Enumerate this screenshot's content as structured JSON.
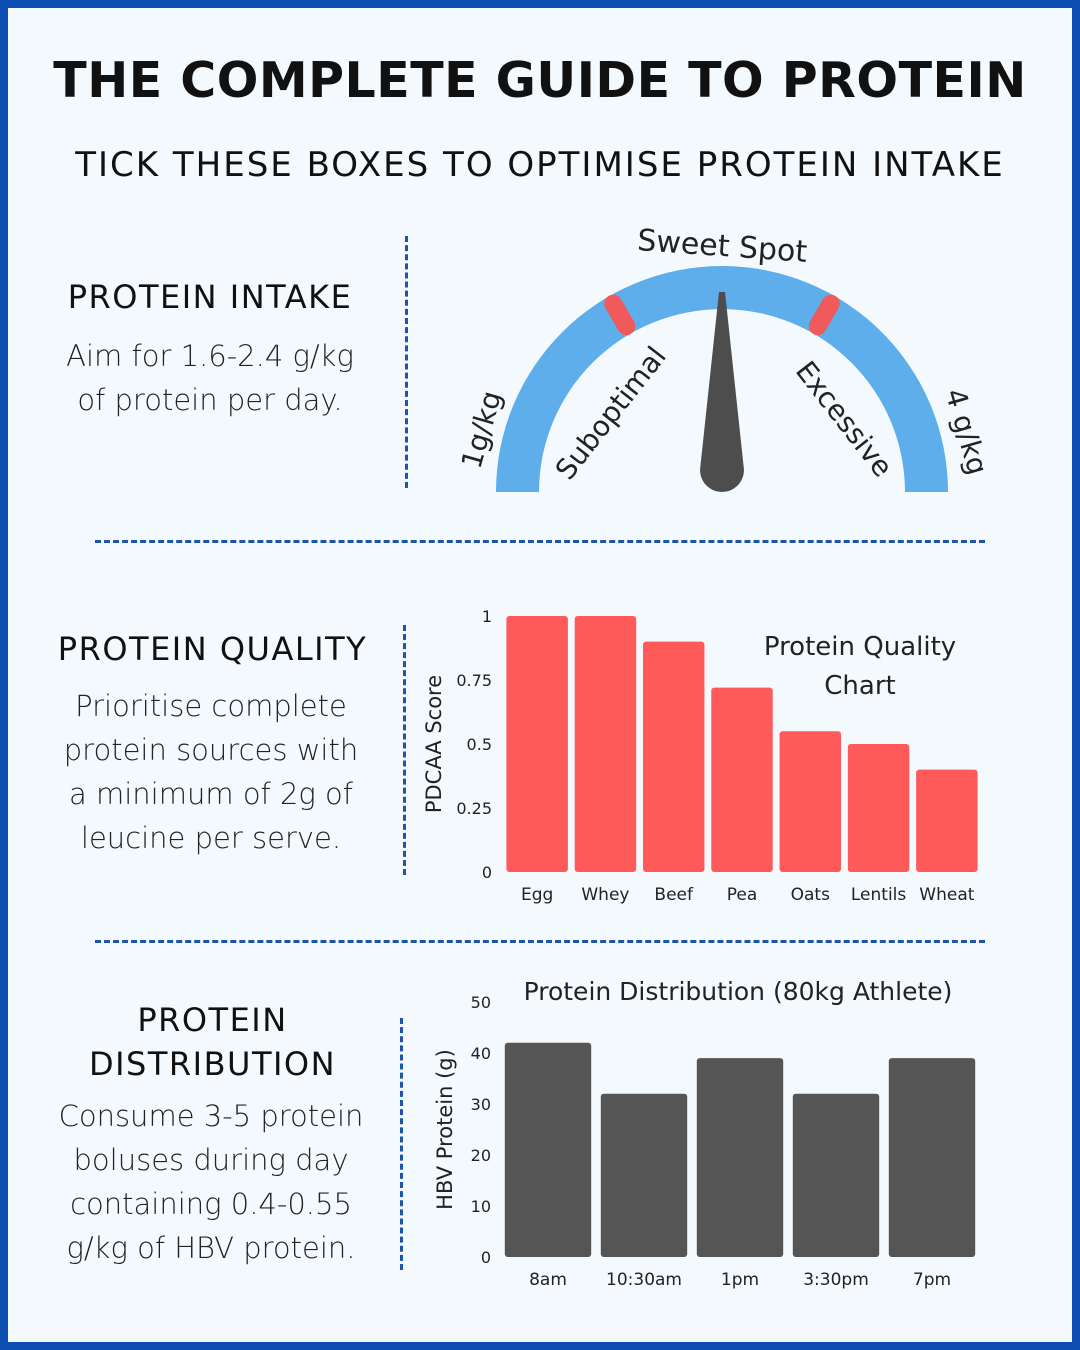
{
  "title": "THE COMPLETE GUIDE TO PROTEIN",
  "subtitle": "TICK THESE BOXES TO OPTIMISE PROTEIN INTAKE",
  "sections": {
    "intake": {
      "heading": "PROTEIN INTAKE",
      "body_lines": [
        "Aim for 1.6-2.4 g/kg",
        "of protein per day."
      ]
    },
    "quality": {
      "heading": "PROTEIN QUALITY",
      "body_lines": [
        "Prioritise complete",
        "protein sources with",
        "a minimum of 2g of",
        "leucine per serve."
      ]
    },
    "distribution": {
      "heading_lines": [
        "PROTEIN",
        "DISTRIBUTION"
      ],
      "body_lines": [
        "Consume 3-5 protein",
        "boluses during day",
        "containing 0.4-0.55",
        "g/kg of HBV protein."
      ]
    }
  },
  "gauge": {
    "min_label": "1g/kg",
    "max_label": "4 g/kg",
    "top_label": "Sweet Spot",
    "left_zone_label": "Suboptimal",
    "right_zone_label": "Excessive",
    "needle_fraction": 0.5,
    "colors": {
      "arc": "#5daeea",
      "marker": "#f05a5b",
      "needle": "#4d4d4d"
    }
  },
  "chart_data": [
    {
      "type": "bar",
      "title": "Protein Quality Chart",
      "title_lines": [
        "Protein Quality",
        "Chart"
      ],
      "categories": [
        "Egg",
        "Whey",
        "Beef",
        "Pea",
        "Oats",
        "Lentils",
        "Wheat"
      ],
      "values": [
        1.0,
        1.0,
        0.9,
        0.72,
        0.55,
        0.5,
        0.4
      ],
      "ylabel": "PDCAA Score",
      "xlabel": "",
      "ylim": [
        0,
        1
      ],
      "yticks": [
        "0",
        "0.25",
        "0.5",
        "0.75",
        "1"
      ],
      "grid": false,
      "color": "#ff5a5a"
    },
    {
      "type": "bar",
      "title": "Protein Distribution (80kg Athlete)",
      "categories": [
        "8am",
        "10:30am",
        "1pm",
        "3:30pm",
        "7pm"
      ],
      "values": [
        42,
        32,
        39,
        32,
        39
      ],
      "ylabel": "HBV Protein (g)",
      "xlabel": "",
      "ylim": [
        0,
        50
      ],
      "yticks": [
        "0",
        "10",
        "20",
        "30",
        "40",
        "50"
      ],
      "grid": false,
      "color": "#555555"
    }
  ]
}
